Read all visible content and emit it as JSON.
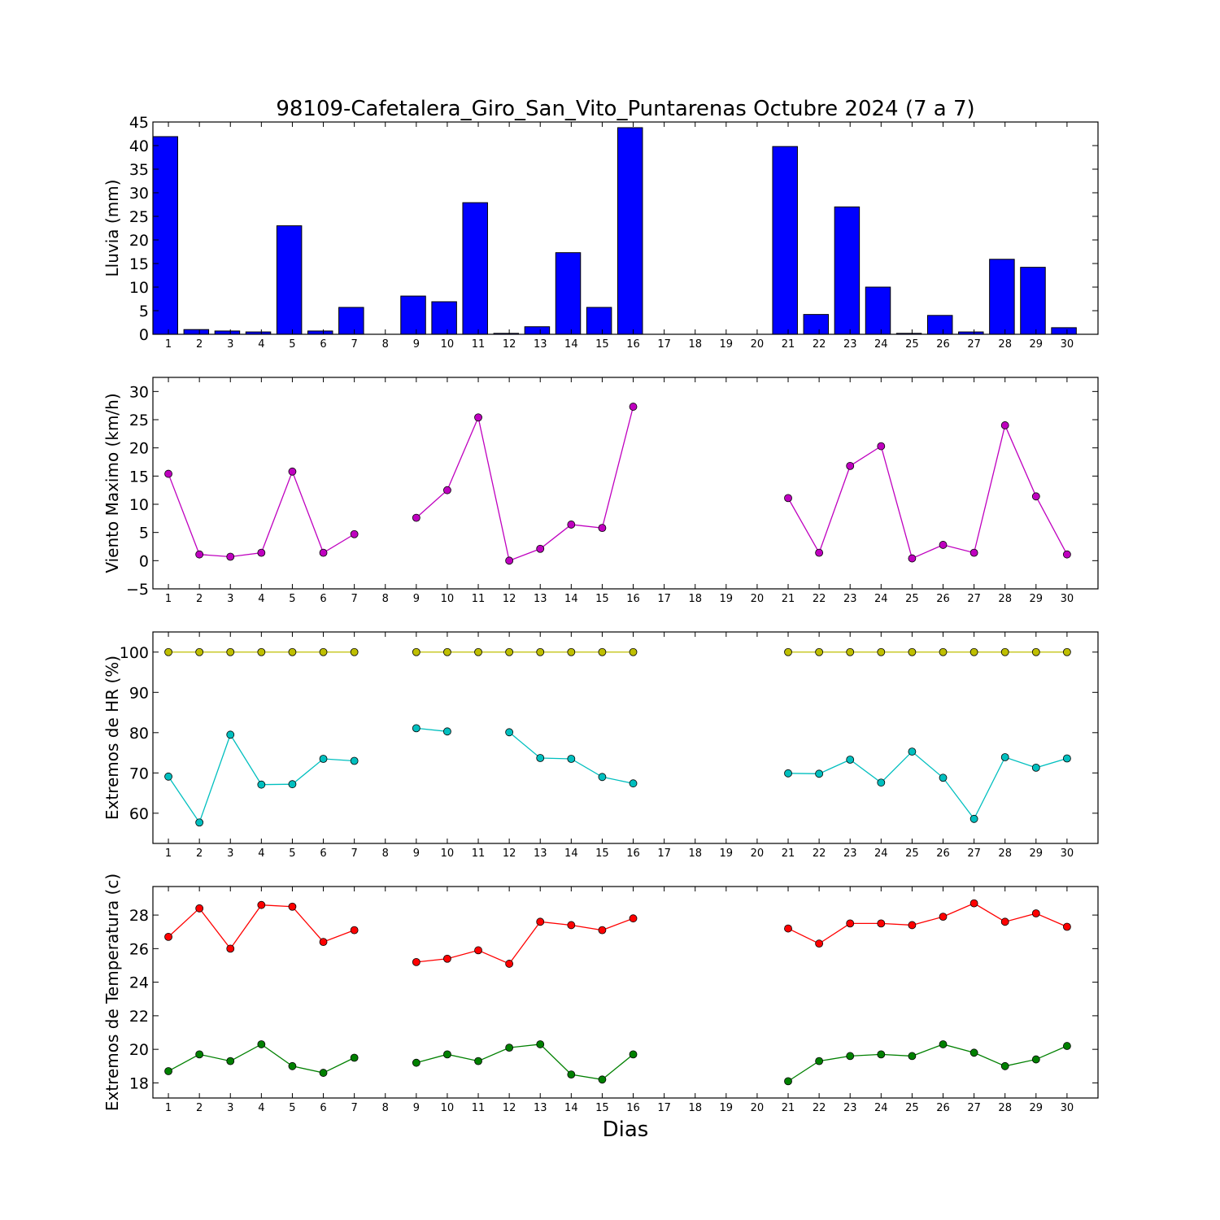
{
  "figure": {
    "title": "98109-Cafetalera_Giro_San_Vito_Puntarenas Octubre 2024  (7 a 7)",
    "xlabel": "Dias"
  },
  "chart_data": [
    {
      "type": "bar",
      "ylabel": "Lluvia (mm)",
      "categories": [
        1,
        2,
        3,
        4,
        5,
        6,
        7,
        8,
        9,
        10,
        11,
        12,
        13,
        14,
        15,
        16,
        17,
        18,
        19,
        20,
        21,
        22,
        23,
        24,
        25,
        26,
        27,
        28,
        29,
        30
      ],
      "ylim": [
        0,
        45
      ],
      "yticks": [
        0,
        5,
        10,
        15,
        20,
        25,
        30,
        35,
        40,
        45
      ],
      "grid": false,
      "series": [
        {
          "color": "#0000ff",
          "values": [
            41.9,
            1.0,
            0.7,
            0.5,
            23.0,
            0.7,
            5.7,
            0,
            8.1,
            6.9,
            27.9,
            0.2,
            1.6,
            17.3,
            5.7,
            43.8,
            0,
            0,
            0,
            0,
            39.8,
            4.2,
            27.0,
            10.0,
            0.2,
            4.0,
            0.5,
            15.9,
            14.2,
            1.4
          ]
        }
      ]
    },
    {
      "type": "line",
      "ylabel": "Viento Maximo (km/h)",
      "categories": [
        1,
        2,
        3,
        4,
        5,
        6,
        7,
        8,
        9,
        10,
        11,
        12,
        13,
        14,
        15,
        16,
        17,
        18,
        19,
        20,
        21,
        22,
        23,
        24,
        25,
        26,
        27,
        28,
        29,
        30
      ],
      "ylim": [
        -5,
        32.5
      ],
      "yticks": [
        -5,
        0,
        5,
        10,
        15,
        20,
        25,
        30
      ],
      "grid": false,
      "series": [
        {
          "color": "#bf00bf",
          "values": [
            15.4,
            1.1,
            0.7,
            1.4,
            15.8,
            1.4,
            4.7,
            null,
            7.6,
            12.5,
            25.4,
            0,
            2.1,
            6.4,
            5.8,
            27.3,
            null,
            null,
            null,
            null,
            11.1,
            1.4,
            16.8,
            20.3,
            0.4,
            2.8,
            1.4,
            24.0,
            11.4,
            1.1
          ]
        }
      ]
    },
    {
      "type": "line",
      "ylabel": "Extremos de HR (%)",
      "categories": [
        1,
        2,
        3,
        4,
        5,
        6,
        7,
        8,
        9,
        10,
        11,
        12,
        13,
        14,
        15,
        16,
        17,
        18,
        19,
        20,
        21,
        22,
        23,
        24,
        25,
        26,
        27,
        28,
        29,
        30
      ],
      "ylim": [
        52.5,
        105
      ],
      "yticks": [
        60,
        70,
        80,
        90,
        100
      ],
      "grid": false,
      "series": [
        {
          "color": "#bfbf00",
          "values": [
            100,
            100,
            100,
            100,
            100,
            100,
            100,
            null,
            100,
            100,
            100,
            100,
            100,
            100,
            100,
            100,
            null,
            null,
            null,
            null,
            100,
            100,
            100,
            100,
            100,
            100,
            100,
            100,
            100,
            100
          ]
        },
        {
          "color": "#00bfbf",
          "values": [
            69.1,
            57.7,
            79.5,
            67.1,
            67.2,
            73.5,
            73.0,
            null,
            81.1,
            80.3,
            null,
            80.1,
            73.7,
            73.5,
            69.0,
            67.4,
            null,
            null,
            null,
            null,
            69.9,
            69.8,
            73.3,
            67.6,
            75.3,
            68.8,
            58.6,
            73.9,
            71.3,
            73.6
          ]
        }
      ]
    },
    {
      "type": "line",
      "ylabel": "Extremos de Temperatura (c)",
      "categories": [
        1,
        2,
        3,
        4,
        5,
        6,
        7,
        8,
        9,
        10,
        11,
        12,
        13,
        14,
        15,
        16,
        17,
        18,
        19,
        20,
        21,
        22,
        23,
        24,
        25,
        26,
        27,
        28,
        29,
        30
      ],
      "ylim": [
        17.1,
        29.7
      ],
      "yticks": [
        18,
        20,
        22,
        24,
        26,
        28
      ],
      "grid": false,
      "series": [
        {
          "color": "#ff0000",
          "values": [
            26.7,
            28.4,
            26.0,
            28.6,
            28.5,
            26.4,
            27.1,
            null,
            25.2,
            25.4,
            25.9,
            25.1,
            27.6,
            27.4,
            27.1,
            27.8,
            null,
            null,
            null,
            null,
            27.2,
            26.3,
            27.5,
            27.5,
            27.4,
            27.9,
            28.7,
            27.6,
            28.1,
            27.3
          ]
        },
        {
          "color": "#008000",
          "values": [
            18.7,
            19.7,
            19.3,
            20.3,
            19.0,
            18.6,
            19.5,
            null,
            19.2,
            19.7,
            19.3,
            20.1,
            20.3,
            18.5,
            18.2,
            19.7,
            null,
            null,
            null,
            null,
            18.1,
            19.3,
            19.6,
            19.7,
            19.6,
            20.3,
            19.8,
            19.0,
            19.4,
            20.2
          ]
        }
      ]
    }
  ]
}
